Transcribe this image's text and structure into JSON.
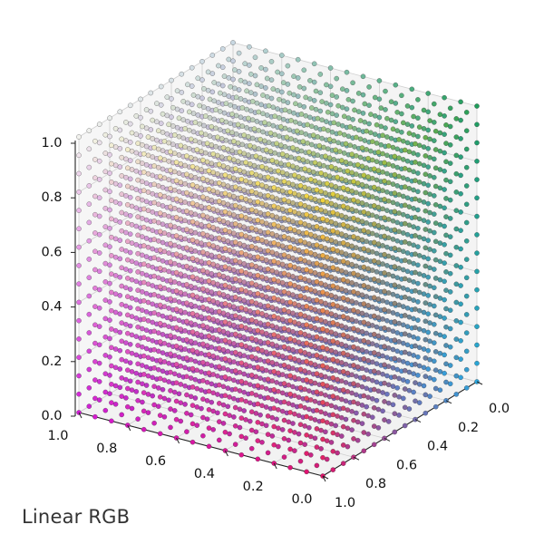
{
  "caption": "Linear RGB",
  "chart_data": {
    "type": "scatter",
    "projection": "3d",
    "title": "",
    "color_space": "Linear RGB",
    "grid": true,
    "pane_color": "#f2f2f2",
    "grid_steps_per_axis": 15,
    "points_description_values": [
      0,
      0.0667,
      0.1333,
      0.2,
      0.2667,
      0.3333,
      0.4,
      0.4667,
      0.5333,
      0.6,
      0.6667,
      0.7333,
      0.8,
      0.8667,
      0.9333,
      1.0
    ],
    "axes": {
      "x": {
        "ticks": [
          "0.0",
          "0.2",
          "0.4",
          "0.6",
          "0.8",
          "1.0"
        ],
        "lim": [
          0,
          1
        ]
      },
      "y": {
        "ticks": [
          "0.0",
          "0.2",
          "0.4",
          "0.6",
          "0.8",
          "1.0"
        ],
        "lim": [
          0,
          1
        ]
      },
      "z": {
        "ticks": [
          "0.0",
          "0.2",
          "0.4",
          "0.6",
          "0.8",
          "1.0"
        ],
        "lim": [
          0,
          1
        ]
      }
    },
    "corner_colors": {
      "origin": "#e0126a",
      "x_max": "#d31bd6",
      "y_max": "#2aa6de",
      "z_max": "#f0d23a",
      "xz_max": "#f2f2ee",
      "yz_max": "#1f9c5a"
    }
  }
}
